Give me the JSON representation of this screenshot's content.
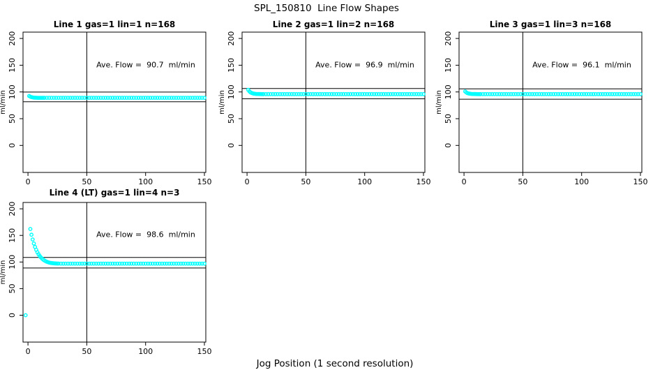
{
  "chart_data": {
    "type": "scatter",
    "title": "SPL_150810  Line Flow Shapes",
    "xlabel": "Jog Position (1 second resolution)",
    "ylabel": "ml/min",
    "x_ticks": [
      0,
      50,
      100,
      150
    ],
    "y_ticks": [
      0,
      50,
      100,
      150,
      200
    ],
    "x_range": [
      -4.2,
      151.2
    ],
    "y_range": [
      -50.5,
      211.9
    ],
    "vline_x": 50,
    "grid": false,
    "legend": "none",
    "point_color": "#00ffff",
    "line_color": "#000000",
    "panels": [
      {
        "title": "Line 1 gas=1 lin=1 n=168",
        "annotation": "Ave. Flow =  90.7  ml/min",
        "ave_flow": 90.7,
        "n": 168,
        "ref_line_upper": 99.8,
        "ref_line_lower": 81.6,
        "points": [
          [
            1,
            92.5
          ],
          [
            2,
            91.1
          ],
          [
            3,
            90.3
          ],
          [
            4,
            89.8
          ],
          [
            5,
            89.5
          ],
          [
            6,
            89.3
          ],
          [
            7,
            89.2
          ],
          [
            8,
            89.1
          ],
          [
            9,
            89.1
          ],
          [
            10,
            89.0
          ],
          [
            11,
            89.0
          ],
          [
            12,
            89.0
          ],
          [
            13,
            89.0
          ]
        ],
        "flat": {
          "x_from": 14,
          "x_to": 150,
          "x_step": 2,
          "y": 89.0
        }
      },
      {
        "title": "Line 2 gas=1 lin=2 n=168",
        "annotation": "Ave. Flow =  96.9  ml/min",
        "ave_flow": 96.9,
        "n": 168,
        "ref_line_upper": 106.6,
        "ref_line_lower": 87.2,
        "points": [
          [
            1,
            104.0
          ],
          [
            2,
            101.1
          ],
          [
            3,
            99.2
          ],
          [
            4,
            98.0
          ],
          [
            5,
            97.3
          ],
          [
            6,
            96.8
          ],
          [
            7,
            96.5
          ],
          [
            8,
            96.3
          ],
          [
            9,
            96.2
          ],
          [
            10,
            96.1
          ],
          [
            11,
            96.1
          ],
          [
            12,
            96.0
          ],
          [
            13,
            96.0
          ]
        ],
        "flat": {
          "x_from": 14,
          "x_to": 150,
          "x_step": 2,
          "y": 96.0
        }
      },
      {
        "title": "Line 3 gas=1 lin=3 n=168",
        "annotation": "Ave. Flow =  96.1  ml/min",
        "ave_flow": 96.1,
        "n": 168,
        "ref_line_upper": 105.7,
        "ref_line_lower": 86.5,
        "points": [
          [
            1,
            101.0
          ],
          [
            2,
            99.0
          ],
          [
            3,
            97.8
          ],
          [
            4,
            97.1
          ],
          [
            5,
            96.7
          ],
          [
            6,
            96.4
          ],
          [
            7,
            96.2
          ],
          [
            8,
            96.2
          ],
          [
            9,
            96.1
          ],
          [
            10,
            96.1
          ],
          [
            11,
            96.0
          ],
          [
            12,
            96.0
          ],
          [
            13,
            96.0
          ]
        ],
        "flat": {
          "x_from": 14,
          "x_to": 150,
          "x_step": 2,
          "y": 96.0
        }
      },
      {
        "title": "Line 4 (LT) gas=1 lin=4 n=3",
        "annotation": "Ave. Flow =  98.6  ml/min",
        "ave_flow": 98.6,
        "n": 3,
        "ref_line_upper": 108.5,
        "ref_line_lower": 88.7,
        "points": [
          [
            -2,
            0
          ],
          [
            2,
            162.0
          ],
          [
            3,
            151.3
          ],
          [
            4,
            142.3
          ],
          [
            5,
            134.7
          ],
          [
            6,
            128.3
          ],
          [
            7,
            122.9
          ],
          [
            8,
            118.4
          ],
          [
            9,
            114.6
          ],
          [
            10,
            111.4
          ],
          [
            11,
            108.7
          ],
          [
            12,
            106.4
          ],
          [
            13,
            104.5
          ],
          [
            14,
            102.9
          ],
          [
            15,
            101.6
          ],
          [
            16,
            100.5
          ],
          [
            17,
            99.7
          ],
          [
            18,
            99.0
          ],
          [
            19,
            98.4
          ],
          [
            20,
            98.0
          ],
          [
            21,
            97.7
          ],
          [
            22,
            97.5
          ],
          [
            23,
            97.3
          ],
          [
            24,
            97.2
          ],
          [
            25,
            97.1
          ],
          [
            26,
            97.1
          ]
        ],
        "flat": {
          "x_from": 28,
          "x_to": 150,
          "x_step": 2,
          "y": 97.0
        }
      }
    ]
  }
}
